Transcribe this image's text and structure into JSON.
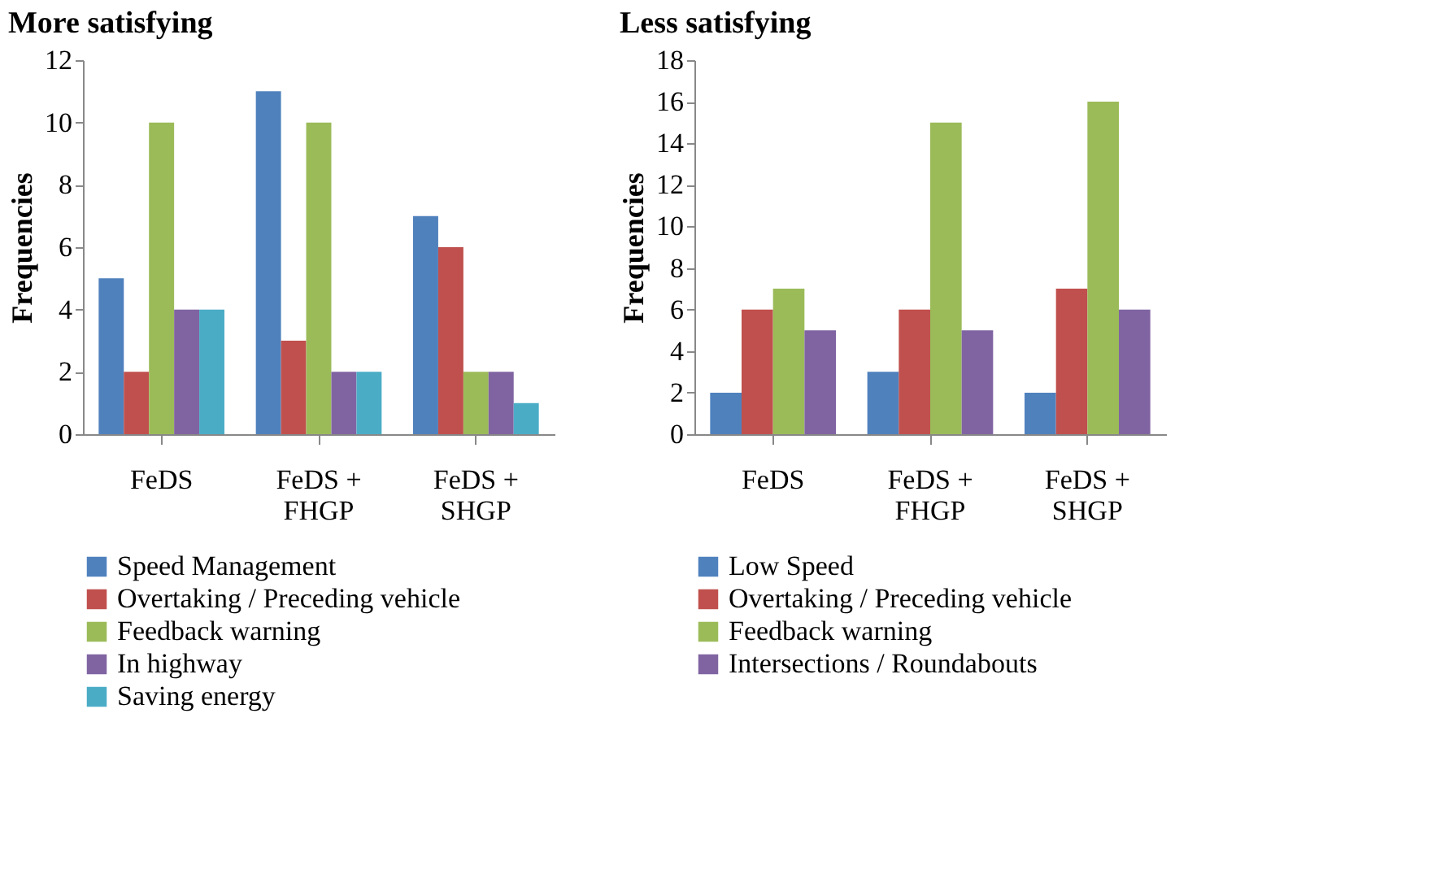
{
  "chart_data": [
    {
      "type": "bar",
      "title": "More satisfying",
      "ylabel": "Frequencies",
      "categories": [
        "FeDS",
        "FeDS + FHGP",
        "FeDS + SHGP"
      ],
      "ylim": [
        0,
        12
      ],
      "yticks": [
        0,
        2,
        4,
        6,
        8,
        10,
        12
      ],
      "grid": false,
      "legend": "bottom",
      "series": [
        {
          "name": "Speed Management",
          "color": "#4f81bd",
          "values": [
            5,
            11,
            7
          ]
        },
        {
          "name": "Overtaking / Preceding vehicle",
          "color": "#c0504d",
          "values": [
            2,
            3,
            6
          ]
        },
        {
          "name": "Feedback warning",
          "color": "#9bbb59",
          "values": [
            10,
            10,
            2
          ]
        },
        {
          "name": "In highway",
          "color": "#8064a2",
          "values": [
            4,
            2,
            2
          ]
        },
        {
          "name": "Saving energy",
          "color": "#4bacc6",
          "values": [
            4,
            2,
            1
          ]
        }
      ]
    },
    {
      "type": "bar",
      "title": "Less satisfying",
      "ylabel": "Frequencies",
      "categories": [
        "FeDS",
        "FeDS + FHGP",
        "FeDS + SHGP"
      ],
      "ylim": [
        0,
        18
      ],
      "yticks": [
        0,
        2,
        4,
        6,
        8,
        10,
        12,
        14,
        16,
        18
      ],
      "grid": false,
      "legend": "bottom",
      "series": [
        {
          "name": "Low Speed",
          "color": "#4f81bd",
          "values": [
            2,
            3,
            2
          ]
        },
        {
          "name": "Overtaking / Preceding vehicle",
          "color": "#c0504d",
          "values": [
            6,
            6,
            7
          ]
        },
        {
          "name": "Feedback warning",
          "color": "#9bbb59",
          "values": [
            7,
            15,
            16
          ]
        },
        {
          "name": "Intersections / Roundabouts",
          "color": "#8064a2",
          "values": [
            5,
            5,
            6
          ]
        }
      ]
    }
  ]
}
